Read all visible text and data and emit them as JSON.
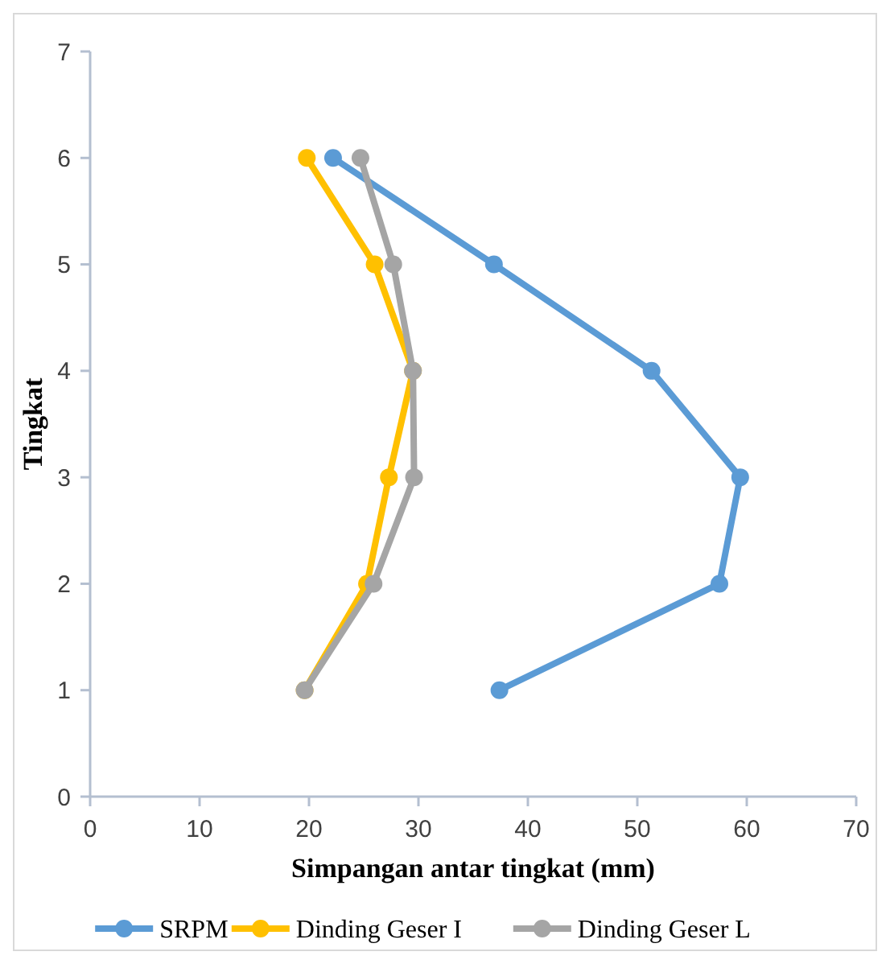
{
  "chart_data": {
    "type": "line",
    "xlabel": "Simpangan antar tingkat (mm)",
    "ylabel": "Tingkat",
    "xlim": [
      0,
      70
    ],
    "xticks": [
      0,
      10,
      20,
      30,
      40,
      50,
      60,
      70
    ],
    "ylim": [
      0,
      7
    ],
    "yticks": [
      0,
      1,
      2,
      3,
      4,
      5,
      6,
      7
    ],
    "grid": false,
    "legend": "bottom",
    "marker": "circle",
    "line_style": "solid",
    "series": [
      {
        "name": "SRPM",
        "color": "#5b9bd5",
        "x": [
          22.2,
          36.9,
          51.3,
          59.4,
          57.5,
          37.4
        ],
        "values": [
          6,
          5,
          4,
          3,
          2,
          1
        ]
      },
      {
        "name": "Dinding Geser I",
        "color": "#ffc000",
        "x": [
          19.8,
          26.0,
          29.5,
          27.3,
          25.3,
          19.6
        ],
        "values": [
          6,
          5,
          4,
          3,
          2,
          1
        ]
      },
      {
        "name": "Dinding Geser L",
        "color": "#a5a5a5",
        "x": [
          24.7,
          27.7,
          29.5,
          29.6,
          25.9,
          19.6
        ],
        "values": [
          6,
          5,
          4,
          3,
          2,
          1
        ]
      }
    ]
  }
}
